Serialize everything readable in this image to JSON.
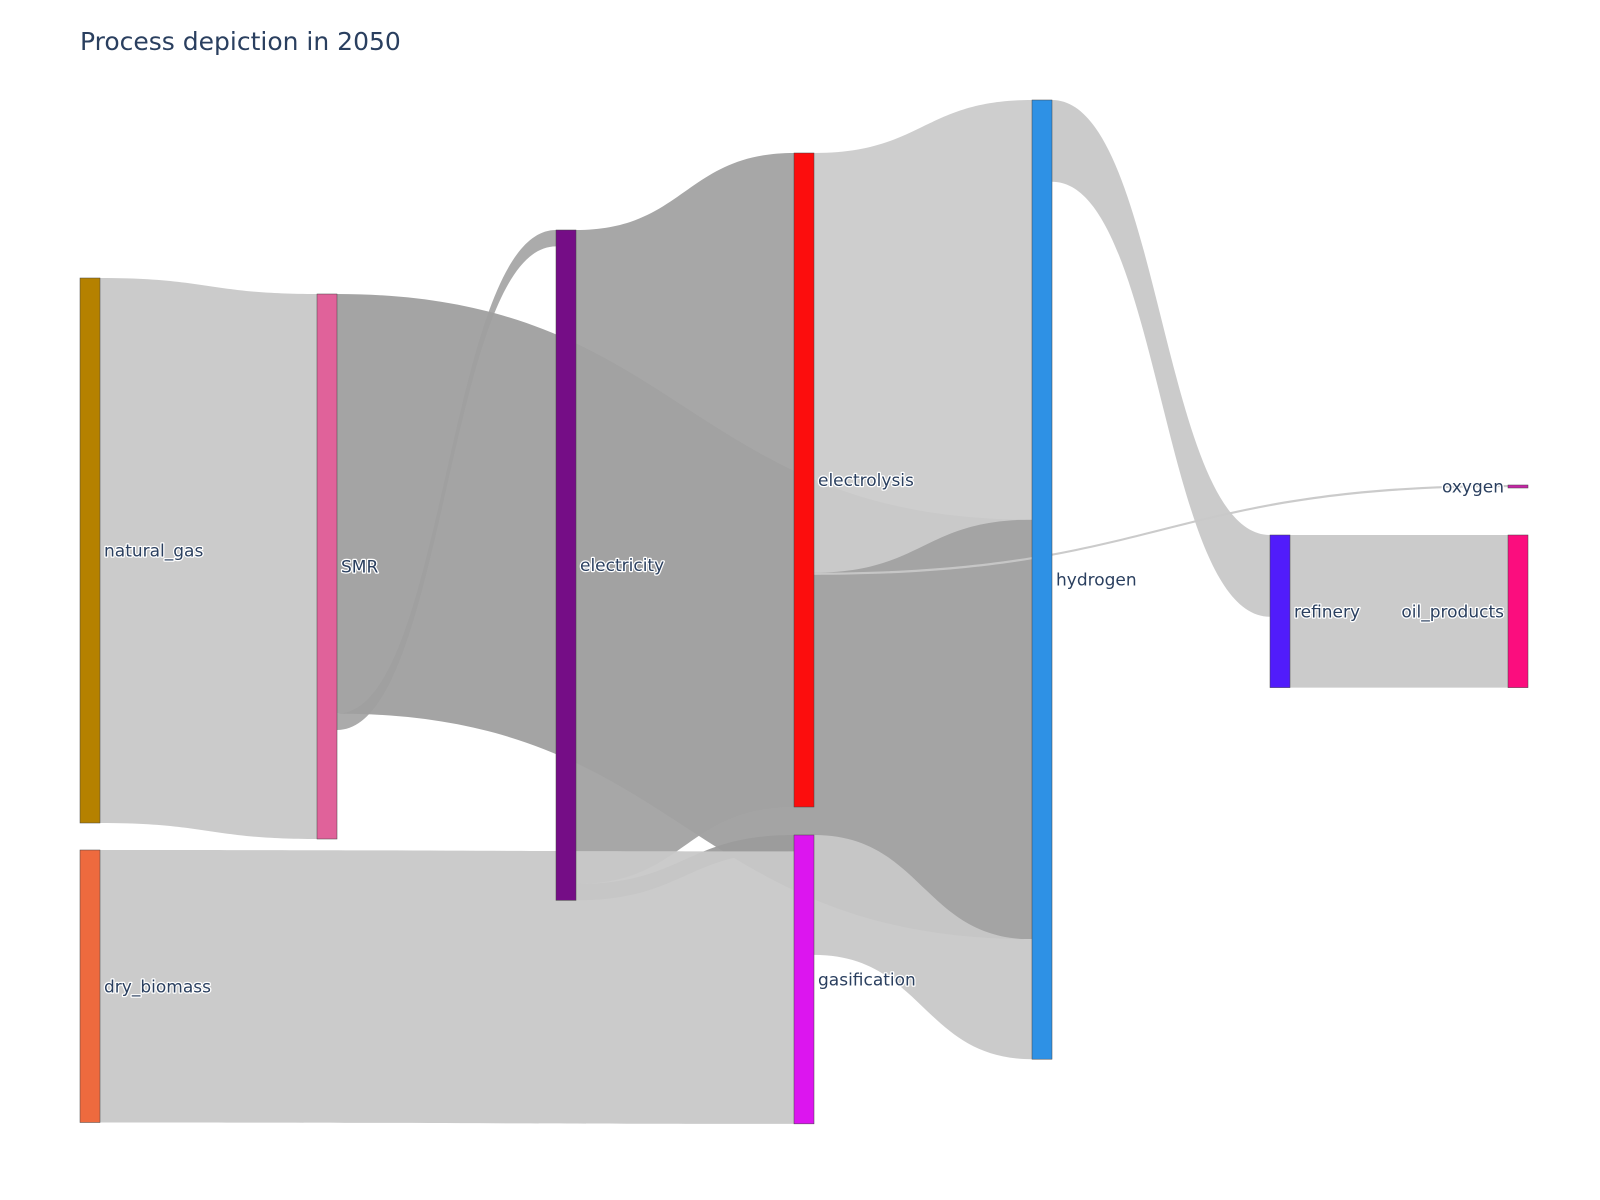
{
  "chart_data": {
    "type": "sankey",
    "title": "Process depiction in 2050",
    "nodes": [
      {
        "id": "natural_gas",
        "label": "natural_gas",
        "color": "#b58100"
      },
      {
        "id": "dry_biomass",
        "label": "dry_biomass",
        "color": "#ee6a3e"
      },
      {
        "id": "SMR",
        "label": "SMR",
        "color": "#e0629a"
      },
      {
        "id": "electricity",
        "label": "electricity",
        "color": "#750d86"
      },
      {
        "id": "electrolysis",
        "label": "electrolysis",
        "color": "#fc0d0d"
      },
      {
        "id": "gasification",
        "label": "gasification",
        "color": "#dc15ef"
      },
      {
        "id": "hydrogen",
        "label": "hydrogen",
        "color": "#2e91e5"
      },
      {
        "id": "refinery",
        "label": "refinery",
        "color": "#511cfb"
      },
      {
        "id": "oxygen",
        "label": "oxygen",
        "color": "#c625a6"
      },
      {
        "id": "oil_products",
        "label": "oil_products",
        "color": "#fb0d7e"
      }
    ],
    "links": [
      {
        "source": "natural_gas",
        "target": "SMR",
        "value": 100
      },
      {
        "source": "SMR",
        "target": "electricity",
        "value": 3
      },
      {
        "source": "SMR",
        "target": "hydrogen",
        "value": 77
      },
      {
        "source": "electricity",
        "target": "electrolysis",
        "value": 120
      },
      {
        "source": "electricity",
        "target": "gasification",
        "value": 3
      },
      {
        "source": "dry_biomass",
        "target": "gasification",
        "value": 50
      },
      {
        "source": "electrolysis",
        "target": "hydrogen",
        "value": 77
      },
      {
        "source": "electrolysis",
        "target": "oxygen",
        "value": 0.4
      },
      {
        "source": "gasification",
        "target": "hydrogen",
        "value": 22
      },
      {
        "source": "hydrogen",
        "target": "refinery",
        "value": 15
      },
      {
        "source": "refinery",
        "target": "oil_products",
        "value": 28
      }
    ]
  }
}
